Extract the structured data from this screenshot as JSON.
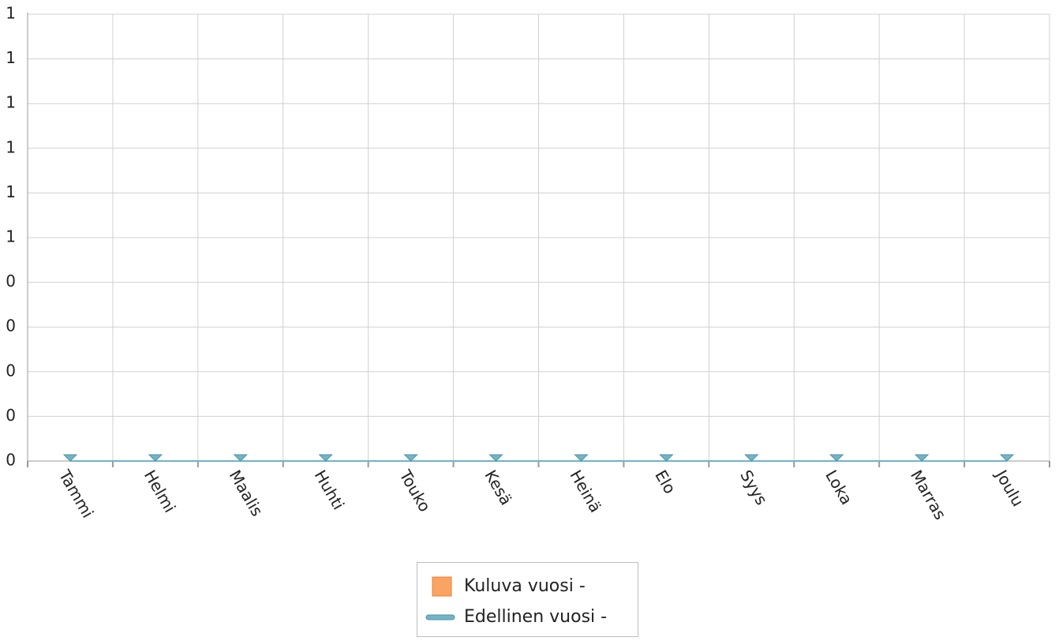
{
  "chart_data": {
    "type": "bar",
    "categories": [
      "Tammi",
      "Helmi",
      "Maalis",
      "Huhti",
      "Touko",
      "Kesä",
      "Heinä",
      "Elo",
      "Syys",
      "Loka",
      "Marras",
      "Joulu"
    ],
    "series": [
      {
        "name": "Kuluva vuosi -",
        "type": "bar",
        "color": "#f9a462",
        "values": [
          0,
          0,
          0,
          0,
          0,
          0,
          0,
          0,
          0,
          0,
          0,
          0
        ]
      },
      {
        "name": "Edellinen vuosi -",
        "type": "line",
        "color": "#72b4c6",
        "values": [
          0,
          0,
          0,
          0,
          0,
          0,
          0,
          0,
          0,
          0,
          0,
          0
        ]
      }
    ],
    "ylim": [
      0,
      1
    ],
    "yticks": [
      {
        "value": 0,
        "label": "0"
      },
      {
        "value": 0.1,
        "label": "0"
      },
      {
        "value": 0.2,
        "label": "0"
      },
      {
        "value": 0.3,
        "label": "0"
      },
      {
        "value": 0.4,
        "label": "0"
      },
      {
        "value": 0.5,
        "label": "1"
      },
      {
        "value": 0.6,
        "label": "1"
      },
      {
        "value": 0.7,
        "label": "1"
      },
      {
        "value": 0.8,
        "label": "1"
      },
      {
        "value": 0.9,
        "label": "1"
      },
      {
        "value": 1,
        "label": "1"
      }
    ],
    "grid": true,
    "legend": "bottom"
  }
}
